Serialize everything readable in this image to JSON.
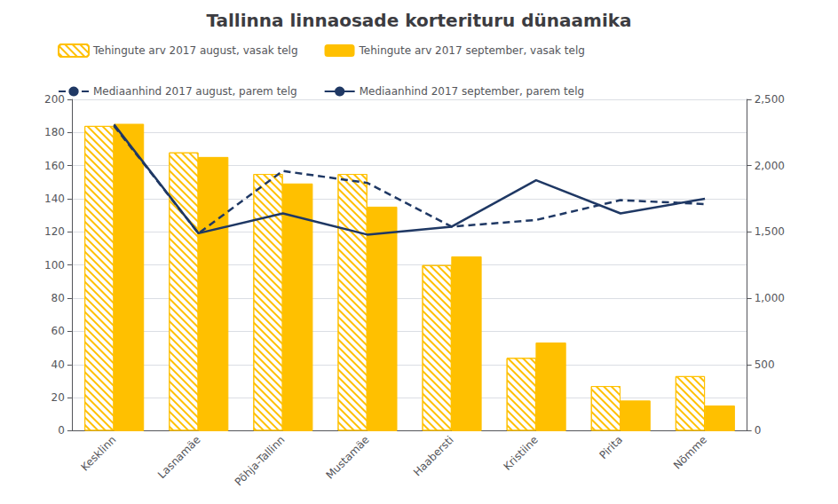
{
  "chart_data": {
    "type": "bar",
    "title": "Tallinna linnaosade korterituru dünaamika",
    "categories": [
      "Kesklinn",
      "Lasnamäe",
      "Põhja-Tallinn",
      "Mustamäe",
      "Haabersti",
      "Kristiine",
      "Pirita",
      "Nõmme"
    ],
    "series": [
      {
        "name": "Tehingute arv 2017 august, vasak telg",
        "type": "bar",
        "color": "#FFC000",
        "marker": "hatched",
        "values": [
          184,
          168,
          155,
          155,
          100,
          44,
          27,
          33
        ]
      },
      {
        "name": "Tehingute arv 2017 september, vasak telg",
        "type": "bar",
        "color": "#FFC000",
        "marker": "solid",
        "values": [
          185,
          165,
          149,
          135,
          105,
          53,
          18,
          15
        ]
      },
      {
        "name": "Mediaanhind 2017 august, parem telg",
        "type": "line",
        "axis": "y2",
        "color": "#1F3864",
        "line_style": "dashed",
        "values": [
          2300,
          1490,
          1960,
          1870,
          1540,
          1590,
          1740,
          1710
        ]
      },
      {
        "name": "Mediaanhind 2017 september, parem telg",
        "type": "line",
        "axis": "y2",
        "color": "#1F3864",
        "line_style": "solid",
        "values": [
          2310,
          1490,
          1640,
          1480,
          1540,
          1890,
          1640,
          1750
        ]
      }
    ],
    "ylim": [
      0,
      200
    ],
    "yticks": [
      0,
      20,
      40,
      60,
      80,
      100,
      120,
      140,
      160,
      180,
      200
    ],
    "y2lim": [
      0,
      2500
    ],
    "y2ticks": [
      0,
      500,
      1000,
      1500,
      2000,
      2500
    ],
    "grid": true,
    "legend": "upper left"
  }
}
